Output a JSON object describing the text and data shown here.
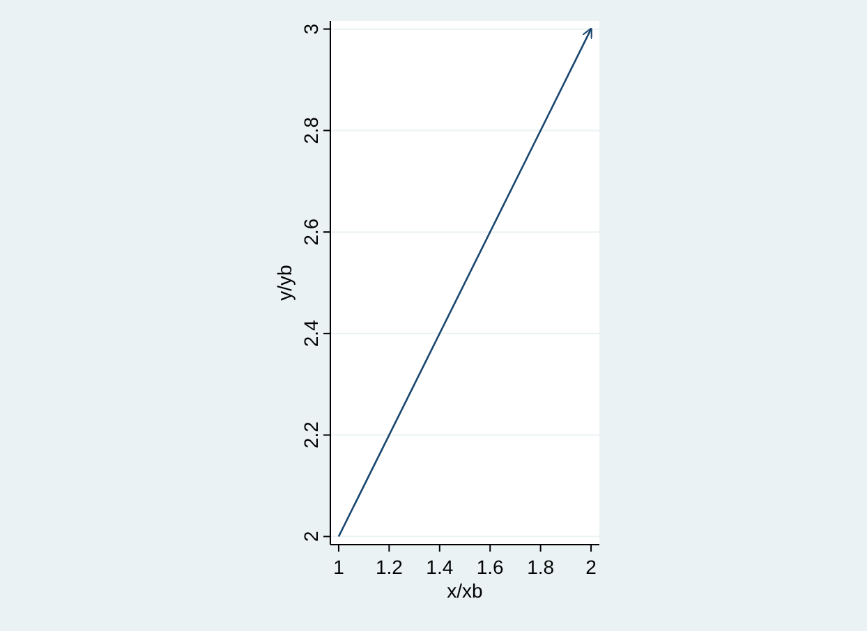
{
  "chart_data": {
    "type": "line",
    "xlabel": "x/xb",
    "ylabel": "y/yb",
    "x": [
      1,
      2
    ],
    "series": [
      {
        "color": "#1a476f",
        "values": [
          2,
          3
        ]
      }
    ],
    "xlim": [
      0.967,
      2.033
    ],
    "ylim": [
      1.984,
      3.016
    ],
    "xticks": [
      1,
      1.2,
      1.4,
      1.6,
      1.8,
      2
    ],
    "yticks": [
      2,
      2.2,
      2.4,
      2.6,
      2.8,
      3
    ],
    "grid": "y",
    "marker": "none",
    "line_style": "solid"
  }
}
